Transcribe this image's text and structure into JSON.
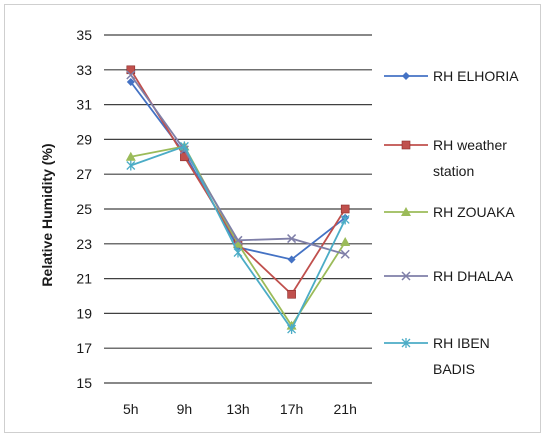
{
  "chart_data": {
    "type": "line",
    "title": "",
    "xlabel": "",
    "ylabel": "Relative Humidity (%)",
    "ylim": [
      15,
      35
    ],
    "yticks": [
      15,
      17,
      19,
      21,
      23,
      25,
      27,
      29,
      31,
      33,
      35
    ],
    "categories": [
      "5h",
      "9h",
      "13h",
      "17h",
      "21h"
    ],
    "grid": "horizontal",
    "legend_position": "right",
    "series": [
      {
        "name": "RH ELHORIA",
        "label_lines": [
          "RH ELHORIA"
        ],
        "values": [
          32.3,
          28.2,
          22.8,
          22.1,
          24.5
        ],
        "color": "#4472c4",
        "marker": "diamond"
      },
      {
        "name": "RH weather station",
        "label_lines": [
          "RH weather",
          "station"
        ],
        "values": [
          33.0,
          28.0,
          23.0,
          20.1,
          25.0
        ],
        "color": "#c0504d",
        "marker": "square"
      },
      {
        "name": "RH ZOUAKA",
        "label_lines": [
          "RH ZOUAKA"
        ],
        "values": [
          28.0,
          28.6,
          23.0,
          18.3,
          23.1
        ],
        "color": "#9bbb59",
        "marker": "triangle"
      },
      {
        "name": "RH DHALAA",
        "label_lines": [
          "RH DHALAA"
        ],
        "values": [
          32.7,
          28.4,
          23.2,
          23.3,
          22.4
        ],
        "color": "#7f7fa8",
        "marker": "x"
      },
      {
        "name": "RH IBEN BADIS",
        "label_lines": [
          "RH IBEN",
          "BADIS"
        ],
        "values": [
          27.5,
          28.6,
          22.5,
          18.1,
          24.4
        ],
        "color": "#4bacc6",
        "marker": "star"
      }
    ]
  }
}
